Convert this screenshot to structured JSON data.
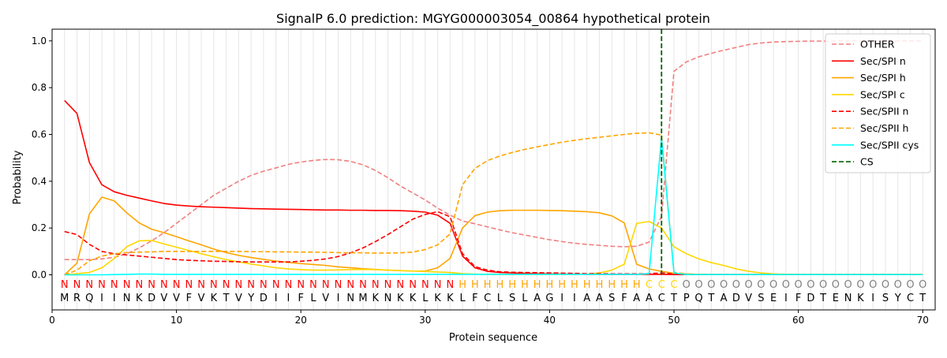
{
  "chart_data": {
    "type": "line",
    "title": "SignalP 6.0 prediction: MGYG000003054_00864 hypothetical protein",
    "xlabel": "Protein sequence",
    "ylabel": "Probability",
    "xlim": [
      0,
      71
    ],
    "ylim": [
      -0.15,
      1.05
    ],
    "xticks": [
      0,
      10,
      20,
      30,
      40,
      50,
      60,
      70
    ],
    "yticks": [
      0.0,
      0.2,
      0.4,
      0.6,
      0.8,
      1.0
    ],
    "grid": "vertical lines at each residue",
    "legend_position": "top-right",
    "sequence": [
      "M",
      "R",
      "Q",
      "I",
      "I",
      "N",
      "K",
      "D",
      "V",
      "V",
      "F",
      "V",
      "K",
      "T",
      "V",
      "Y",
      "D",
      "I",
      "I",
      "F",
      "L",
      "V",
      "I",
      "N",
      "M",
      "K",
      "N",
      "K",
      "K",
      "L",
      "K",
      "K",
      "L",
      "F",
      "C",
      "L",
      "S",
      "L",
      "A",
      "G",
      "I",
      "I",
      "A",
      "A",
      "S",
      "F",
      "A",
      "A",
      "C",
      "T",
      "P",
      "Q",
      "T",
      "A",
      "D",
      "V",
      "S",
      "E",
      "I",
      "F",
      "D",
      "T",
      "E",
      "N",
      "K",
      "I",
      "S",
      "Y",
      "C",
      "T"
    ],
    "region_labels": [
      "N",
      "N",
      "N",
      "N",
      "N",
      "N",
      "N",
      "N",
      "N",
      "N",
      "N",
      "N",
      "N",
      "N",
      "N",
      "N",
      "N",
      "N",
      "N",
      "N",
      "N",
      "N",
      "N",
      "N",
      "N",
      "N",
      "N",
      "N",
      "N",
      "N",
      "N",
      "N",
      "H",
      "H",
      "H",
      "H",
      "H",
      "H",
      "H",
      "H",
      "H",
      "H",
      "H",
      "H",
      "H",
      "H",
      "H",
      "C",
      "C",
      "C",
      "O",
      "O",
      "O",
      "O",
      "O",
      "O",
      "O",
      "O",
      "O",
      "O",
      "O",
      "O",
      "O",
      "O",
      "O",
      "O",
      "O",
      "O",
      "O",
      "O"
    ],
    "region_colors": {
      "N": "#ff0000",
      "H": "#ffa500",
      "C": "#ffd700",
      "O": "#808080"
    },
    "cleavage_site": 49,
    "series": [
      {
        "name": "OTHER",
        "color": "#f08080",
        "dash": "dashed",
        "values": [
          0.065,
          0.065,
          0.065,
          0.068,
          0.075,
          0.09,
          0.115,
          0.145,
          0.18,
          0.22,
          0.26,
          0.3,
          0.34,
          0.37,
          0.4,
          0.425,
          0.443,
          0.457,
          0.472,
          0.482,
          0.489,
          0.493,
          0.492,
          0.485,
          0.47,
          0.446,
          0.415,
          0.38,
          0.35,
          0.32,
          0.285,
          0.255,
          0.23,
          0.218,
          0.205,
          0.192,
          0.18,
          0.17,
          0.16,
          0.15,
          0.142,
          0.135,
          0.13,
          0.126,
          0.122,
          0.12,
          0.122,
          0.14,
          0.25,
          0.87,
          0.91,
          0.932,
          0.947,
          0.96,
          0.972,
          0.984,
          0.991,
          0.995,
          0.997,
          0.998,
          0.999,
          0.999,
          0.999,
          1.0,
          1.0,
          1.0,
          1.0,
          1.0,
          1.0,
          1.0
        ]
      },
      {
        "name": "Sec/SPI n",
        "color": "#ff0000",
        "dash": "solid",
        "values": [
          0.745,
          0.69,
          0.48,
          0.385,
          0.355,
          0.34,
          0.328,
          0.316,
          0.305,
          0.298,
          0.294,
          0.291,
          0.289,
          0.287,
          0.285,
          0.283,
          0.282,
          0.281,
          0.28,
          0.279,
          0.278,
          0.277,
          0.277,
          0.276,
          0.276,
          0.275,
          0.275,
          0.274,
          0.272,
          0.268,
          0.255,
          0.22,
          0.08,
          0.03,
          0.015,
          0.01,
          0.008,
          0.006,
          0.005,
          0.004,
          0.003,
          0.003,
          0.002,
          0.002,
          0.002,
          0.002,
          0.002,
          0.002,
          0.002,
          0.001,
          0.001,
          0.001,
          0.001,
          0.001,
          0.001,
          0.001,
          0.001,
          0.001,
          0.001,
          0.001,
          0.001,
          0.001,
          0.001,
          0.001,
          0.001,
          0.001,
          0.001,
          0.001,
          0.001,
          0.001
        ]
      },
      {
        "name": "Sec/SPI h",
        "color": "#ffa500",
        "dash": "solid",
        "values": [
          0.0,
          0.05,
          0.26,
          0.332,
          0.316,
          0.265,
          0.222,
          0.195,
          0.18,
          0.163,
          0.145,
          0.128,
          0.11,
          0.095,
          0.083,
          0.074,
          0.066,
          0.059,
          0.053,
          0.048,
          0.044,
          0.04,
          0.034,
          0.03,
          0.026,
          0.023,
          0.02,
          0.018,
          0.016,
          0.016,
          0.03,
          0.07,
          0.2,
          0.253,
          0.268,
          0.274,
          0.276,
          0.276,
          0.276,
          0.275,
          0.274,
          0.272,
          0.27,
          0.265,
          0.252,
          0.222,
          0.045,
          0.025,
          0.015,
          0.006,
          0.003,
          0.002,
          0.001,
          0.001,
          0.001,
          0.001,
          0.001,
          0.001,
          0.001,
          0.001,
          0.001,
          0.001,
          0.001,
          0.001,
          0.001,
          0.001,
          0.001,
          0.001,
          0.001,
          0.001
        ]
      },
      {
        "name": "Sec/SPI c",
        "color": "#ffd700",
        "dash": "solid",
        "values": [
          0.0,
          0.005,
          0.01,
          0.03,
          0.07,
          0.12,
          0.145,
          0.147,
          0.132,
          0.118,
          0.104,
          0.09,
          0.077,
          0.065,
          0.055,
          0.046,
          0.038,
          0.03,
          0.025,
          0.022,
          0.02,
          0.02,
          0.021,
          0.022,
          0.023,
          0.022,
          0.02,
          0.018,
          0.016,
          0.014,
          0.012,
          0.01,
          0.005,
          0.003,
          0.002,
          0.002,
          0.002,
          0.002,
          0.002,
          0.002,
          0.002,
          0.002,
          0.003,
          0.008,
          0.02,
          0.045,
          0.22,
          0.228,
          0.2,
          0.12,
          0.09,
          0.068,
          0.052,
          0.04,
          0.025,
          0.015,
          0.008,
          0.004,
          0.002,
          0.001,
          0.001,
          0.001,
          0.001,
          0.001,
          0.001,
          0.001,
          0.001,
          0.001,
          0.001,
          0.001
        ]
      },
      {
        "name": "Sec/SPII n",
        "color": "#ff0000",
        "dash": "dashed",
        "values": [
          0.185,
          0.172,
          0.13,
          0.1,
          0.09,
          0.085,
          0.08,
          0.075,
          0.07,
          0.065,
          0.062,
          0.06,
          0.058,
          0.057,
          0.056,
          0.055,
          0.055,
          0.055,
          0.055,
          0.058,
          0.062,
          0.068,
          0.078,
          0.094,
          0.115,
          0.142,
          0.172,
          0.205,
          0.238,
          0.258,
          0.27,
          0.248,
          0.09,
          0.035,
          0.02,
          0.013,
          0.011,
          0.01,
          0.009,
          0.008,
          0.007,
          0.006,
          0.005,
          0.005,
          0.004,
          0.004,
          0.004,
          0.005,
          0.008,
          0.004,
          0.002,
          0.001,
          0.001,
          0.001,
          0.001,
          0.001,
          0.001,
          0.001,
          0.001,
          0.001,
          0.001,
          0.001,
          0.001,
          0.001,
          0.001,
          0.001,
          0.001,
          0.001,
          0.001,
          0.001
        ]
      },
      {
        "name": "Sec/SPII h",
        "color": "#ffa500",
        "dash": "dashed",
        "values": [
          0.0,
          0.02,
          0.06,
          0.08,
          0.09,
          0.095,
          0.097,
          0.098,
          0.1,
          0.1,
          0.1,
          0.1,
          0.1,
          0.1,
          0.1,
          0.099,
          0.099,
          0.098,
          0.098,
          0.097,
          0.097,
          0.096,
          0.095,
          0.094,
          0.094,
          0.093,
          0.093,
          0.094,
          0.097,
          0.108,
          0.128,
          0.175,
          0.385,
          0.455,
          0.488,
          0.508,
          0.523,
          0.536,
          0.547,
          0.557,
          0.567,
          0.575,
          0.582,
          0.588,
          0.594,
          0.6,
          0.605,
          0.607,
          0.597,
          0.01,
          0.004,
          0.002,
          0.001,
          0.001,
          0.001,
          0.001,
          0.001,
          0.001,
          0.001,
          0.001,
          0.001,
          0.001,
          0.001,
          0.001,
          0.001,
          0.001,
          0.001,
          0.001,
          0.001,
          0.001
        ]
      },
      {
        "name": "Sec/SPII cys",
        "color": "#00ffff",
        "dash": "solid",
        "values": [
          0.0,
          0.0,
          0.0,
          0.0,
          0.001,
          0.002,
          0.003,
          0.003,
          0.002,
          0.002,
          0.002,
          0.002,
          0.002,
          0.002,
          0.002,
          0.002,
          0.002,
          0.002,
          0.002,
          0.002,
          0.002,
          0.002,
          0.002,
          0.002,
          0.002,
          0.002,
          0.002,
          0.002,
          0.002,
          0.002,
          0.002,
          0.002,
          0.002,
          0.002,
          0.002,
          0.002,
          0.002,
          0.002,
          0.002,
          0.002,
          0.002,
          0.002,
          0.002,
          0.002,
          0.002,
          0.002,
          0.002,
          0.005,
          0.585,
          0.008,
          0.001,
          0.001,
          0.001,
          0.001,
          0.001,
          0.001,
          0.001,
          0.001,
          0.001,
          0.001,
          0.001,
          0.001,
          0.001,
          0.001,
          0.001,
          0.001,
          0.001,
          0.001,
          0.001,
          0.001
        ]
      },
      {
        "name": "CS",
        "color": "#006400",
        "dash": "dashed"
      }
    ]
  }
}
